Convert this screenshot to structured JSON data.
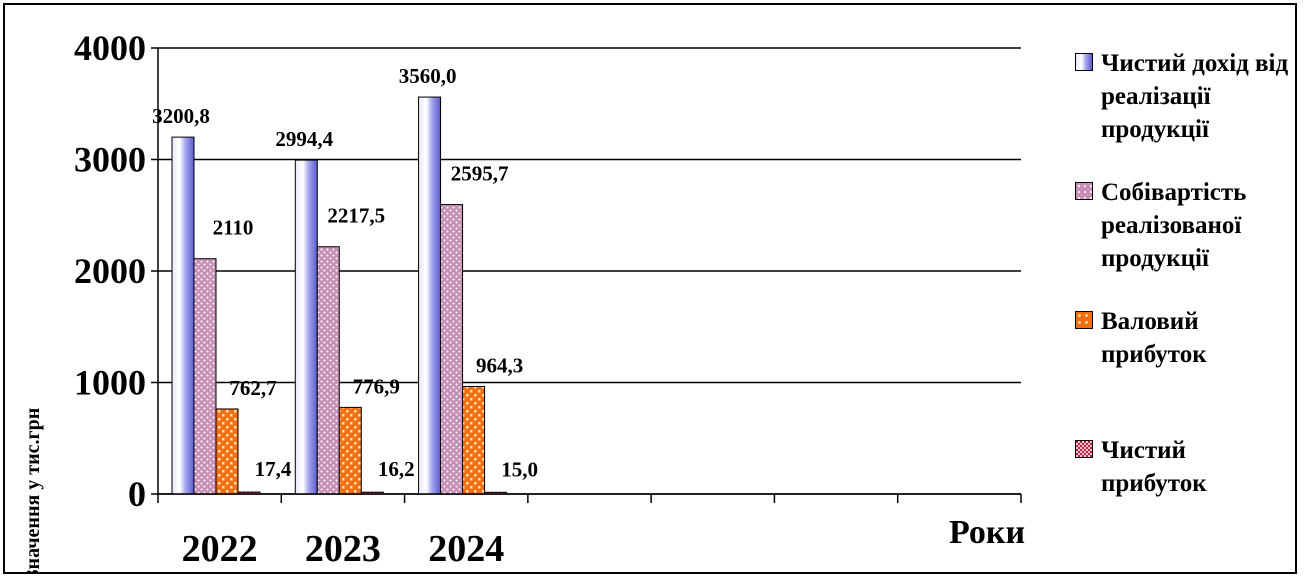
{
  "chart_data": {
    "type": "bar",
    "categories": [
      "2022",
      "2023",
      "2024"
    ],
    "xlabel": "Роки",
    "ylabel": "Значення у тис.грн",
    "ylim": [
      0,
      4000
    ],
    "yticks": [
      "0",
      "1000",
      "2000",
      "3000",
      "4000"
    ],
    "grid": true,
    "legend_position": "right",
    "series": [
      {
        "name": "Чистий дохід від реалізації продукції",
        "values": [
          3200.8,
          2994.4,
          3560.0
        ],
        "labels": [
          "3200,8",
          "2994,4",
          "3560,0"
        ],
        "color": "#b8b8f4"
      },
      {
        "name": "Собівартість реалізованої продукції",
        "values": [
          2110,
          2217.5,
          2595.7
        ],
        "labels": [
          "2110",
          "2217,5",
          "2595,7"
        ],
        "color": "#c890b8"
      },
      {
        "name": "Валовий прибуток",
        "values": [
          762.7,
          776.9,
          964.3
        ],
        "labels": [
          "762,7",
          "776,9",
          "964,3"
        ],
        "color": "#f07a1c"
      },
      {
        "name": "Чистий прибуток",
        "values": [
          17.4,
          16.2,
          15.0
        ],
        "labels": [
          "17,4",
          "16,2",
          "15,0"
        ],
        "color": "#c8506a"
      }
    ]
  }
}
